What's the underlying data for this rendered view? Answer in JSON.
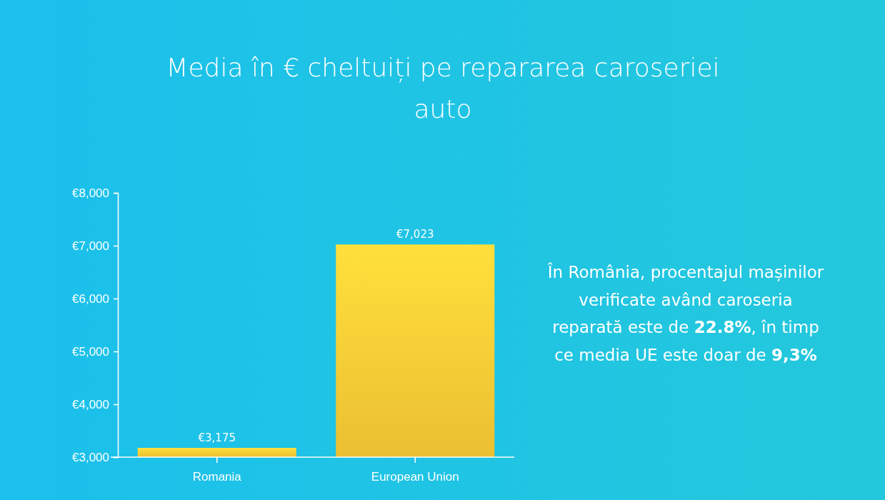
{
  "chart_data": {
    "type": "bar",
    "title": "Media în € cheltuiți pe repararea caroseriei auto",
    "categories": [
      "Romania",
      "European Union"
    ],
    "values": [
      3175,
      7023
    ],
    "value_labels": [
      "€3,175",
      "€7,023"
    ],
    "color": "#f8c935",
    "ylim": [
      3000,
      8000
    ],
    "yticks": [
      {
        "value": 3000,
        "label": "€3,000"
      },
      {
        "value": 4000,
        "label": "€4,000"
      },
      {
        "value": 5000,
        "label": "€5,000"
      },
      {
        "value": 6000,
        "label": "€6,000"
      },
      {
        "value": 7000,
        "label": "€7,000"
      },
      {
        "value": 8000,
        "label": "€8,000"
      }
    ],
    "grid": false,
    "annotations": [
      "În România, procentajul mașinilor verificate având caroseria reparată este de 22.8%, în timp ce media UE este doar de 9,3%"
    ]
  }
}
